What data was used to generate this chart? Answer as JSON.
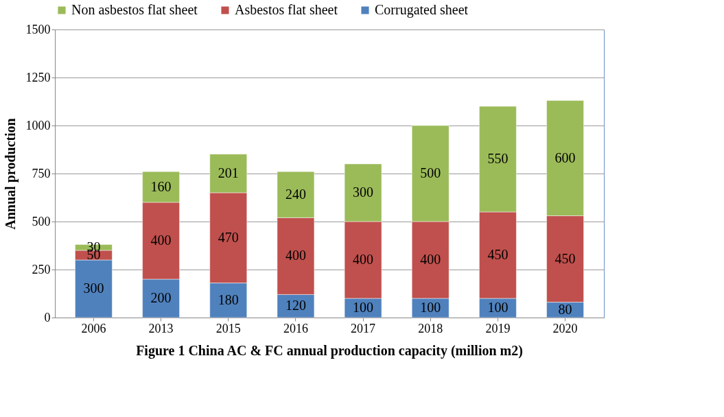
{
  "chart_data": {
    "type": "bar",
    "stacked": true,
    "title": "Figure 1 China AC & FC annual production capacity (million m2)",
    "ylabel": "Annual production",
    "categories": [
      "2006",
      "2013",
      "2015",
      "2016",
      "2017",
      "2018",
      "2019",
      "2020"
    ],
    "series": [
      {
        "name": "Corrugated sheet",
        "color": "#4f81bd",
        "values": [
          300,
          200,
          180,
          120,
          100,
          100,
          100,
          80
        ]
      },
      {
        "name": "Asbestos flat sheet",
        "color": "#c0504d",
        "values": [
          50,
          400,
          470,
          400,
          400,
          400,
          450,
          450
        ]
      },
      {
        "name": "Non asbestos flat sheet",
        "color": "#9bbb59",
        "values": [
          30,
          160,
          201,
          240,
          300,
          500,
          550,
          600
        ]
      }
    ],
    "ylim": [
      0,
      1500
    ],
    "yticks": [
      0,
      250,
      500,
      750,
      1000,
      1250,
      1500
    ],
    "grid": "y",
    "legend": "top",
    "data_labels": true
  }
}
